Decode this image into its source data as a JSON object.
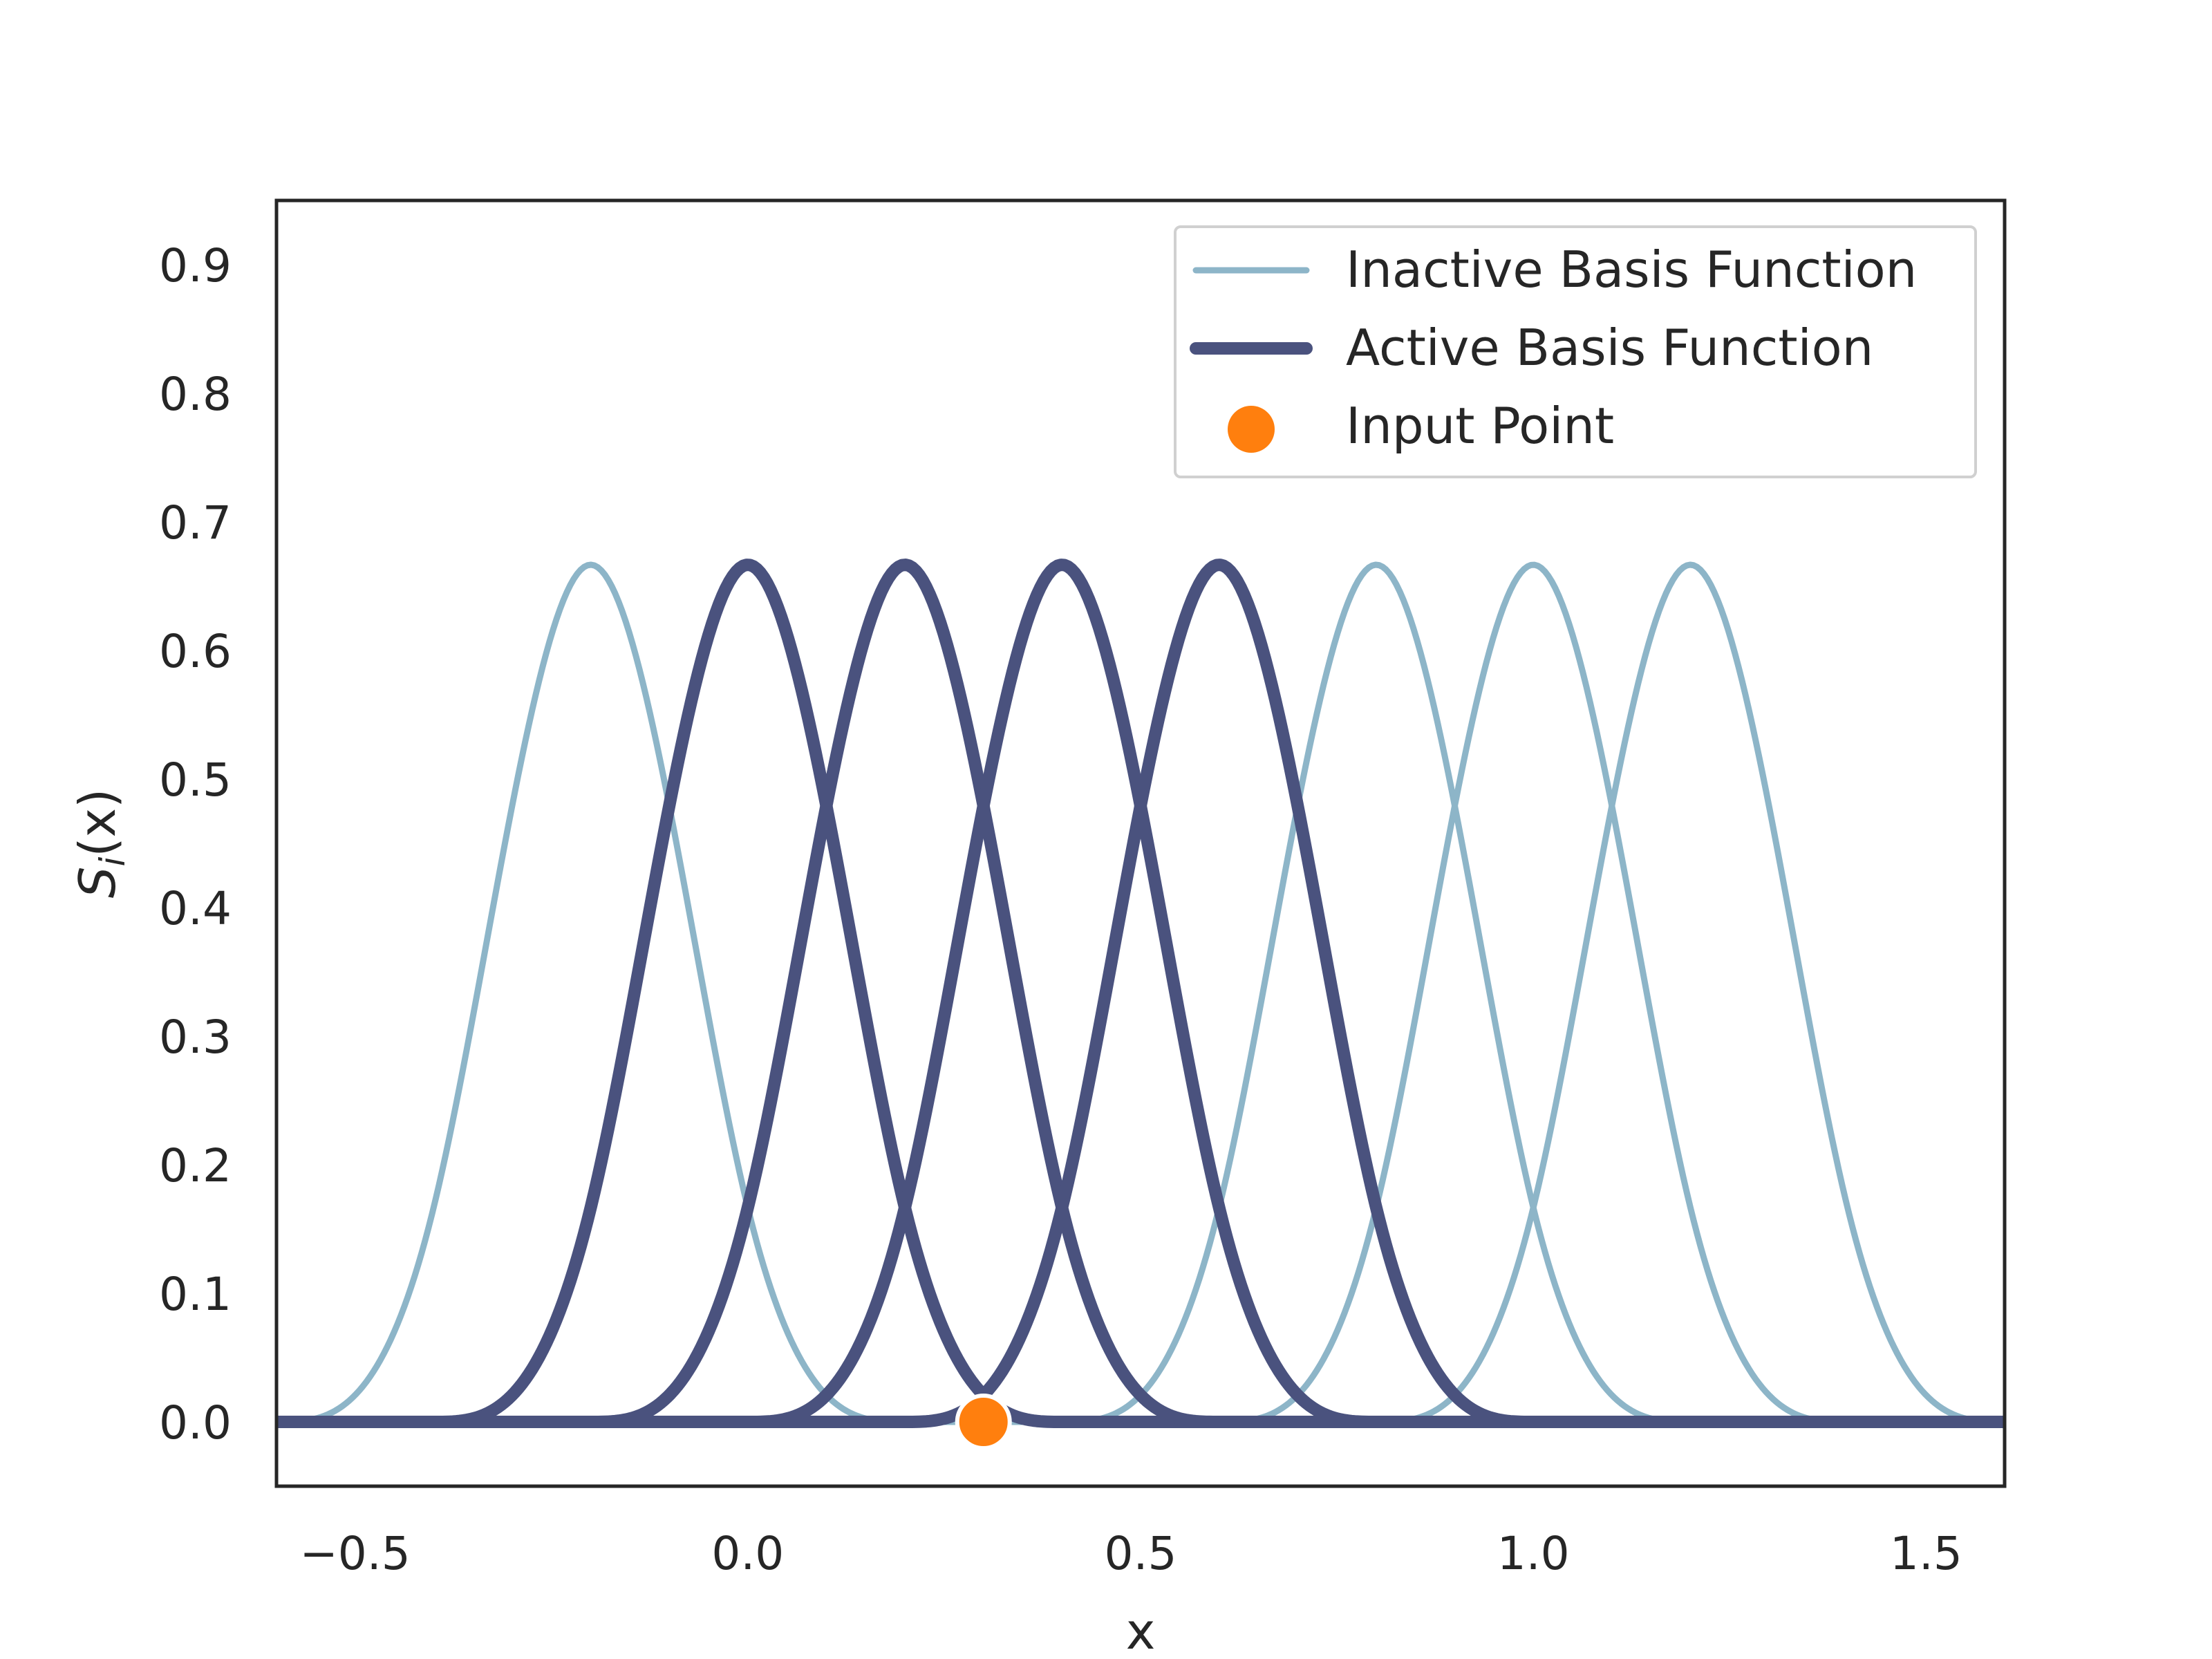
{
  "chart_data": {
    "type": "line",
    "xlabel": "x",
    "ylabel_base": "S",
    "ylabel_sub": "i",
    "ylabel_arg": "(x)",
    "xlim": [
      -0.6,
      1.6
    ],
    "ylim": [
      -0.05,
      0.95
    ],
    "xticks": [
      {
        "value": -0.5,
        "label": "−0.5"
      },
      {
        "value": 0.0,
        "label": "0.0"
      },
      {
        "value": 0.5,
        "label": "0.5"
      },
      {
        "value": 1.0,
        "label": "1.0"
      },
      {
        "value": 1.5,
        "label": "1.5"
      }
    ],
    "yticks": [
      {
        "value": 0.0,
        "label": "0.0"
      },
      {
        "value": 0.1,
        "label": "0.1"
      },
      {
        "value": 0.2,
        "label": "0.2"
      },
      {
        "value": 0.3,
        "label": "0.3"
      },
      {
        "value": 0.4,
        "label": "0.4"
      },
      {
        "value": 0.5,
        "label": "0.5"
      },
      {
        "value": 0.6,
        "label": "0.6"
      },
      {
        "value": 0.7,
        "label": "0.7"
      },
      {
        "value": 0.8,
        "label": "0.8"
      },
      {
        "value": 0.9,
        "label": "0.9"
      }
    ],
    "grid": false,
    "basis": {
      "kind": "cubic B-spline",
      "knot_spacing": 0.2,
      "peak": 0.667,
      "x_range": [
        -0.6,
        1.6
      ]
    },
    "series": [
      {
        "name": "Inactive Basis Function",
        "center": -0.2,
        "active": false
      },
      {
        "name": "Active Basis Function",
        "center": 0.0,
        "active": true
      },
      {
        "name": "Active Basis Function",
        "center": 0.2,
        "active": true
      },
      {
        "name": "Active Basis Function",
        "center": 0.4,
        "active": true
      },
      {
        "name": "Active Basis Function",
        "center": 0.6,
        "active": true
      },
      {
        "name": "Inactive Basis Function",
        "center": 0.8,
        "active": false
      },
      {
        "name": "Inactive Basis Function",
        "center": 1.0,
        "active": false
      },
      {
        "name": "Inactive Basis Function",
        "center": 1.2,
        "active": false
      }
    ],
    "input_point": {
      "name": "Input Point",
      "x": 0.3,
      "y": 0.0
    },
    "legend": {
      "placement": "top-right",
      "entries": [
        "Inactive Basis Function",
        "Active Basis Function",
        "Input Point"
      ]
    },
    "colors": {
      "inactive": "#8db5c8",
      "active": "#4a527e",
      "point": "#ff7f0e",
      "axes": "#262626"
    }
  }
}
